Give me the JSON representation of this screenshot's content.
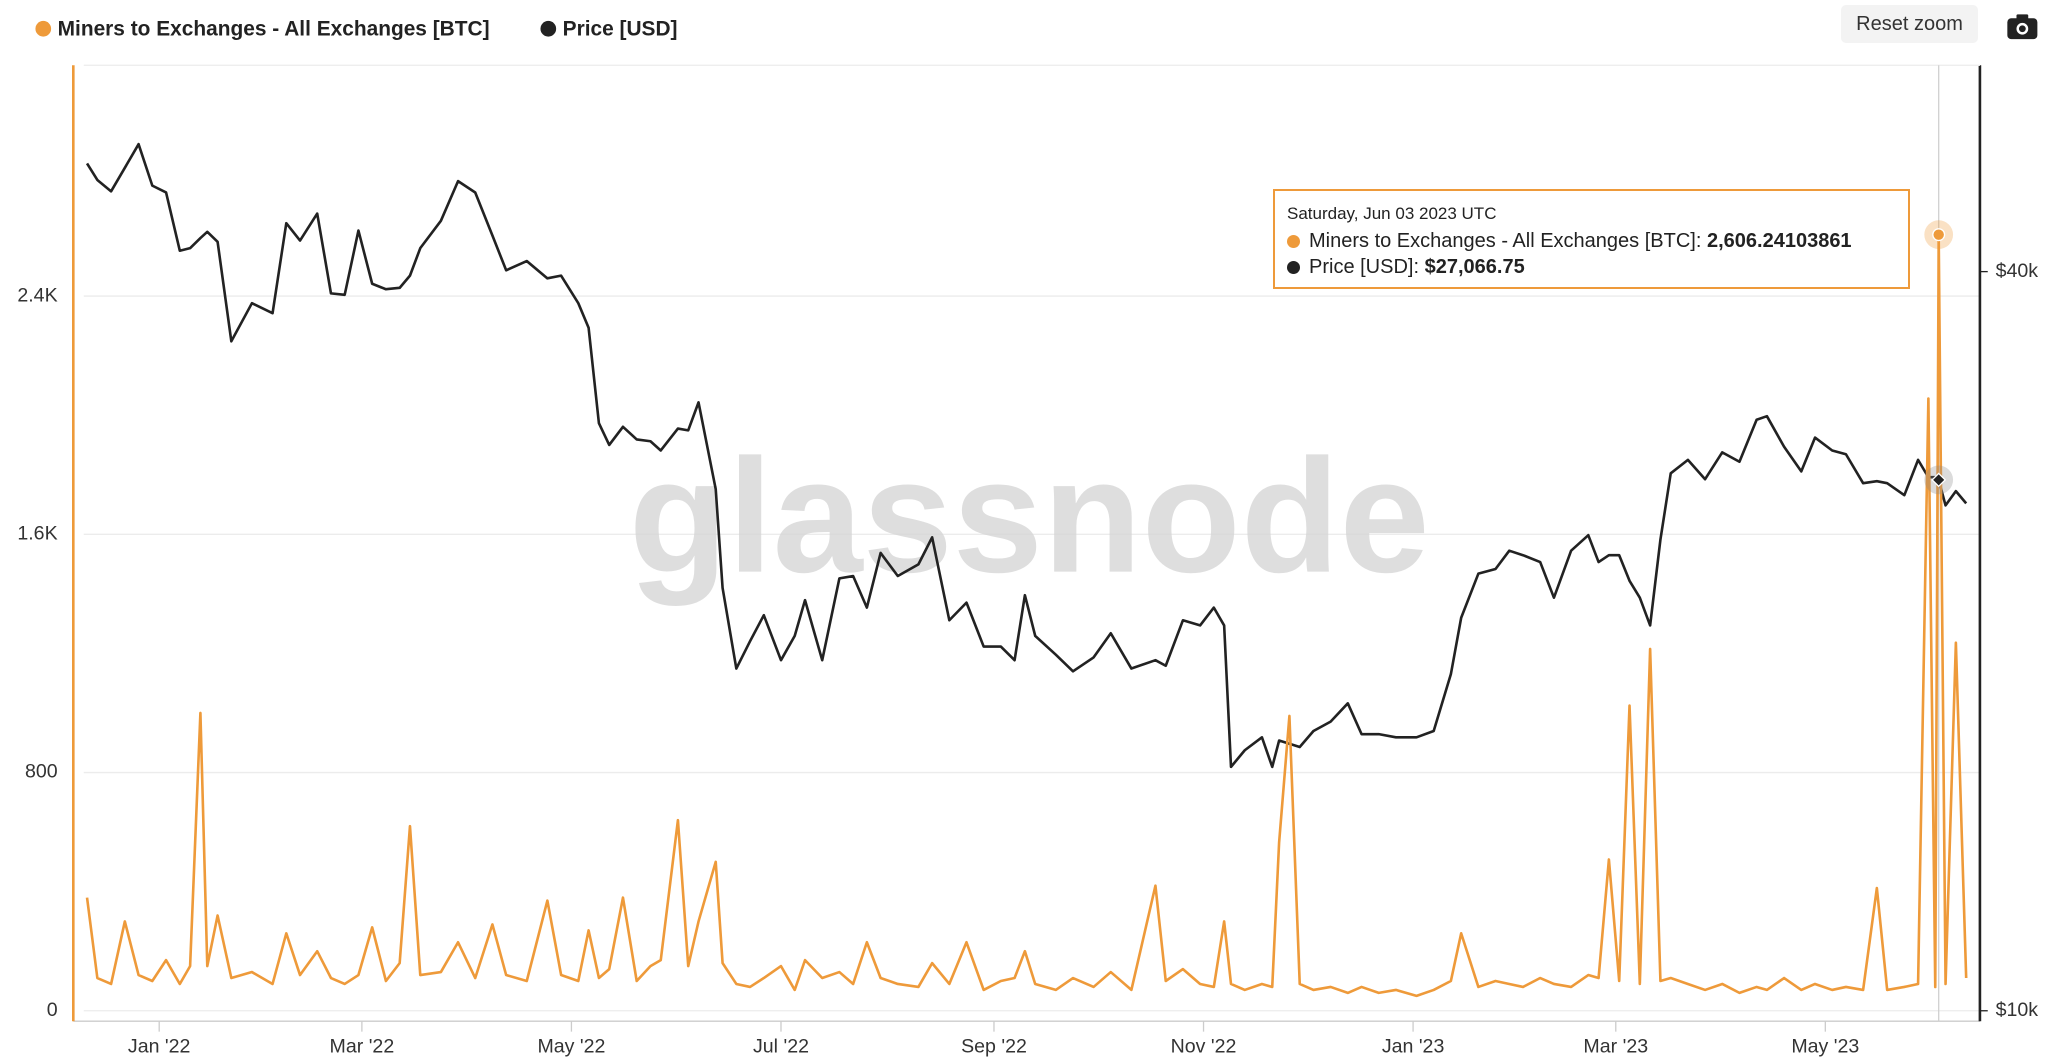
{
  "toolbar": {
    "reset_zoom": "Reset zoom"
  },
  "chart_data": {
    "type": "line",
    "watermark": "glassnode",
    "legend": "top-left",
    "grid": true,
    "x": [
      "2021-12-11",
      "2021-12-14",
      "2021-12-18",
      "2021-12-22",
      "2021-12-26",
      "2021-12-30",
      "2022-01-03",
      "2022-01-07",
      "2022-01-10",
      "2022-01-13",
      "2022-01-15",
      "2022-01-18",
      "2022-01-22",
      "2022-01-28",
      "2022-02-03",
      "2022-02-07",
      "2022-02-11",
      "2022-02-16",
      "2022-02-20",
      "2022-02-24",
      "2022-02-28",
      "2022-03-04",
      "2022-03-08",
      "2022-03-12",
      "2022-03-15",
      "2022-03-18",
      "2022-03-24",
      "2022-03-29",
      "2022-04-03",
      "2022-04-08",
      "2022-04-12",
      "2022-04-18",
      "2022-04-24",
      "2022-04-28",
      "2022-05-03",
      "2022-05-06",
      "2022-05-09",
      "2022-05-12",
      "2022-05-16",
      "2022-05-20",
      "2022-05-24",
      "2022-05-27",
      "2022-06-01",
      "2022-06-04",
      "2022-06-07",
      "2022-06-12",
      "2022-06-14",
      "2022-06-18",
      "2022-06-22",
      "2022-06-26",
      "2022-07-01",
      "2022-07-05",
      "2022-07-08",
      "2022-07-13",
      "2022-07-18",
      "2022-07-22",
      "2022-07-26",
      "2022-07-30",
      "2022-08-04",
      "2022-08-10",
      "2022-08-14",
      "2022-08-19",
      "2022-08-24",
      "2022-08-29",
      "2022-09-03",
      "2022-09-07",
      "2022-09-10",
      "2022-09-13",
      "2022-09-19",
      "2022-09-24",
      "2022-09-30",
      "2022-10-05",
      "2022-10-11",
      "2022-10-18",
      "2022-10-21",
      "2022-10-26",
      "2022-10-31",
      "2022-11-04",
      "2022-11-07",
      "2022-11-09",
      "2022-11-13",
      "2022-11-18",
      "2022-11-21",
      "2022-11-23",
      "2022-11-26",
      "2022-11-29",
      "2022-12-03",
      "2022-12-08",
      "2022-12-13",
      "2022-12-17",
      "2022-12-22",
      "2022-12-27",
      "2023-01-02",
      "2023-01-07",
      "2023-01-12",
      "2023-01-15",
      "2023-01-20",
      "2023-01-25",
      "2023-01-29",
      "2023-02-02",
      "2023-02-07",
      "2023-02-11",
      "2023-02-16",
      "2023-02-21",
      "2023-02-24",
      "2023-02-27",
      "2023-03-02",
      "2023-03-05",
      "2023-03-08",
      "2023-03-11",
      "2023-03-14",
      "2023-03-17",
      "2023-03-22",
      "2023-03-27",
      "2023-04-01",
      "2023-04-06",
      "2023-04-11",
      "2023-04-14",
      "2023-04-19",
      "2023-04-24",
      "2023-04-28",
      "2023-05-03",
      "2023-05-07",
      "2023-05-12",
      "2023-05-16",
      "2023-05-19",
      "2023-05-24",
      "2023-05-28",
      "2023-05-31",
      "2023-06-02",
      "2023-06-03",
      "2023-06-05",
      "2023-06-08",
      "2023-06-11"
    ],
    "series": [
      {
        "name": "Miners to Exchanges - All Exchanges [BTC]",
        "color": "#ee9a3a",
        "axis": "y",
        "values": [
          380,
          110,
          90,
          300,
          120,
          100,
          170,
          90,
          150,
          1000,
          150,
          320,
          110,
          130,
          90,
          260,
          120,
          200,
          110,
          90,
          120,
          280,
          100,
          160,
          620,
          120,
          130,
          230,
          110,
          290,
          120,
          100,
          370,
          120,
          100,
          270,
          110,
          140,
          380,
          100,
          150,
          170,
          640,
          150,
          300,
          500,
          160,
          90,
          80,
          110,
          150,
          70,
          170,
          110,
          130,
          90,
          230,
          110,
          90,
          80,
          160,
          90,
          230,
          70,
          100,
          110,
          200,
          90,
          70,
          110,
          80,
          130,
          70,
          420,
          100,
          140,
          90,
          80,
          300,
          90,
          70,
          90,
          80,
          565,
          990,
          90,
          70,
          80,
          60,
          80,
          60,
          70,
          50,
          70,
          100,
          260,
          80,
          100,
          90,
          80,
          110,
          90,
          80,
          120,
          110,
          508,
          100,
          1025,
          90,
          1215,
          100,
          110,
          90,
          70,
          90,
          60,
          80,
          70,
          110,
          70,
          90,
          70,
          80,
          70,
          412,
          70,
          80,
          90,
          2056,
          80,
          2606.24103861,
          90,
          1236,
          110
        ]
      },
      {
        "name": "Price [USD]",
        "color": "#222222",
        "axis": "y2",
        "values": [
          49000,
          47500,
          46500,
          48600,
          50800,
          47000,
          46400,
          41600,
          41800,
          42600,
          43100,
          42300,
          35100,
          37700,
          37000,
          43800,
          42400,
          44600,
          38400,
          38300,
          43200,
          39100,
          38700,
          38800,
          39700,
          41800,
          44000,
          47400,
          46400,
          42800,
          40100,
          40800,
          39500,
          39700,
          37700,
          36000,
          30100,
          28900,
          29900,
          29200,
          29100,
          28600,
          29800,
          29700,
          31300,
          26600,
          22100,
          19000,
          20000,
          21000,
          19300,
          20200,
          21600,
          19300,
          22500,
          22600,
          21300,
          23600,
          22600,
          23100,
          24300,
          20800,
          21500,
          19800,
          19800,
          19300,
          21800,
          20200,
          19500,
          18900,
          19400,
          20300,
          19000,
          19300,
          19100,
          20800,
          20600,
          21300,
          20600,
          15800,
          16300,
          16700,
          15800,
          16600,
          16500,
          16400,
          16900,
          17200,
          17800,
          16800,
          16800,
          16700,
          16700,
          16900,
          18800,
          20900,
          22700,
          22900,
          23700,
          23500,
          23200,
          21700,
          23700,
          24400,
          23200,
          23500,
          23500,
          22400,
          21700,
          20600,
          24200,
          27400,
          28100,
          27100,
          28500,
          28000,
          30300,
          30500,
          28800,
          27500,
          29300,
          28600,
          28400,
          26900,
          27000,
          26900,
          26300,
          28100,
          27200,
          27200,
          27066.75,
          25800,
          26500,
          25900
        ]
      }
    ],
    "xlim": [
      "2021-12-07",
      "2023-06-15"
    ],
    "xticks": [
      {
        "value": "2022-01-01",
        "label": "Jan '22"
      },
      {
        "value": "2022-03-01",
        "label": "Mar '22"
      },
      {
        "value": "2022-05-01",
        "label": "May '22"
      },
      {
        "value": "2022-07-01",
        "label": "Jul '22"
      },
      {
        "value": "2022-09-01",
        "label": "Sep '22"
      },
      {
        "value": "2022-11-01",
        "label": "Nov '22"
      },
      {
        "value": "2023-01-01",
        "label": "Jan '23"
      },
      {
        "value": "2023-03-01",
        "label": "Mar '23"
      },
      {
        "value": "2023-05-01",
        "label": "May '23"
      }
    ],
    "ylim": [
      0,
      3175
    ],
    "yticks": [
      0,
      800,
      {
        "value": 1600,
        "label": "1.6K"
      },
      {
        "value": 2400,
        "label": "2.4K"
      }
    ],
    "y2lim": [
      10000,
      58900
    ],
    "y2scale": "log",
    "y2ticks": [
      {
        "value": 10000,
        "label": "$10k"
      },
      {
        "value": 40000,
        "label": "$40k"
      }
    ],
    "tooltip": {
      "x": "2023-06-03",
      "date_label": "Saturday, Jun 03 2023 UTC",
      "value_labels": [
        "2,606.24103861",
        "$27,066.75"
      ]
    }
  }
}
